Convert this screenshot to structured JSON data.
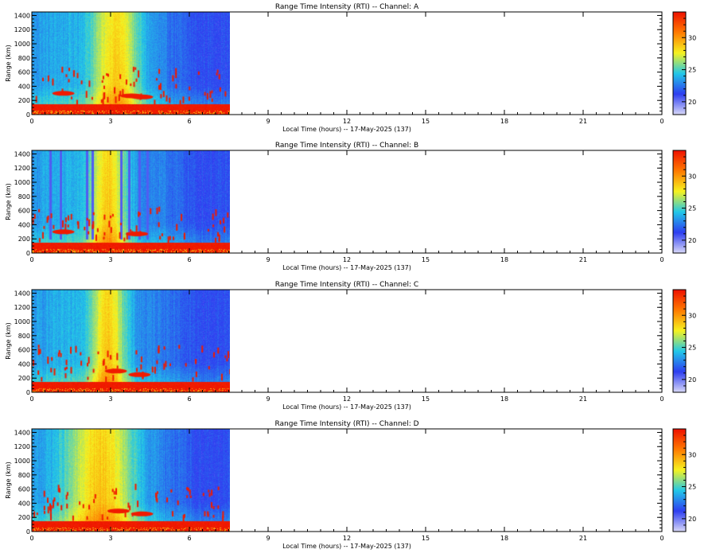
{
  "figure": {
    "colorbar_ticks": [
      "20",
      "25",
      "30"
    ],
    "colorbar_colors": [
      "#d8d8f8",
      "#2e3ef0",
      "#22c8e8",
      "#f6f220",
      "#ff7a00",
      "#ee1000"
    ]
  },
  "chart_data": [
    {
      "type": "heatmap",
      "title": "Range Time Intensity (RTI) -- Channel: A",
      "xlabel": "Local Time (hours) -- 17-May-2025 (137)",
      "ylabel": "Range (km)",
      "xlim": [
        0,
        24
      ],
      "ylim": [
        0,
        1450
      ],
      "xticks": [
        "0",
        "3",
        "6",
        "9",
        "12",
        "15",
        "18",
        "21",
        "0"
      ],
      "yticks": [
        "0",
        "200",
        "400",
        "600",
        "800",
        "1000",
        "1200",
        "1400"
      ],
      "data_end_hour": 7.55,
      "colorbar": {
        "range": [
          18,
          34
        ],
        "ticks": [
          20,
          25,
          30
        ]
      },
      "features": {
        "warm_band_center_hour": 3.2,
        "warm_band_halfwidth_hours": 0.9,
        "ground_clutter_top_km": 150,
        "echo_blobs": [
          {
            "hour": 1.2,
            "km": 300
          },
          {
            "hour": 3.8,
            "km": 265
          },
          {
            "hour": 4.2,
            "km": 250
          }
        ]
      }
    },
    {
      "type": "heatmap",
      "title": "Range Time Intensity (RTI) -- Channel: B",
      "xlabel": "Local Time (hours) -- 17-May-2025 (137)",
      "ylabel": "Range (km)",
      "xlim": [
        0,
        24
      ],
      "ylim": [
        0,
        1450
      ],
      "xticks": [
        "0",
        "3",
        "6",
        "9",
        "12",
        "15",
        "18",
        "21",
        "0"
      ],
      "yticks": [
        "0",
        "200",
        "400",
        "600",
        "800",
        "1000",
        "1200",
        "1400"
      ],
      "data_end_hour": 7.55,
      "colorbar": {
        "range": [
          18,
          34
        ],
        "ticks": [
          20,
          25,
          30
        ]
      },
      "features": {
        "warm_band_center_hour": 2.9,
        "warm_band_halfwidth_hours": 0.7,
        "ground_clutter_top_km": 150,
        "vertical_streak_hours": [
          0.7,
          1.1,
          2.1,
          2.3,
          3.4,
          3.7,
          4.1,
          4.4
        ],
        "echo_blobs": [
          {
            "hour": 1.2,
            "km": 300
          },
          {
            "hour": 4.0,
            "km": 270
          }
        ]
      }
    },
    {
      "type": "heatmap",
      "title": "Range Time Intensity (RTI) -- Channel: C",
      "xlabel": "Local Time (hours) -- 17-May-2025 (137)",
      "ylabel": "Range (km)",
      "xlim": [
        0,
        24
      ],
      "ylim": [
        0,
        1450
      ],
      "xticks": [
        "0",
        "3",
        "6",
        "9",
        "12",
        "15",
        "18",
        "21",
        "0"
      ],
      "yticks": [
        "0",
        "200",
        "400",
        "600",
        "800",
        "1000",
        "1200",
        "1400"
      ],
      "data_end_hour": 7.55,
      "colorbar": {
        "range": [
          18,
          34
        ],
        "ticks": [
          20,
          25,
          30
        ]
      },
      "features": {
        "warm_band_center_hour": 2.9,
        "warm_band_halfwidth_hours": 0.7,
        "ground_clutter_top_km": 150,
        "echo_blobs": [
          {
            "hour": 3.2,
            "km": 300
          },
          {
            "hour": 4.1,
            "km": 250
          }
        ]
      }
    },
    {
      "type": "heatmap",
      "title": "Range Time Intensity (RTI) -- Channel: D",
      "xlabel": "Local Time (hours) -- 17-May-2025 (137)",
      "ylabel": "Range (km)",
      "xlim": [
        0,
        24
      ],
      "ylim": [
        0,
        1450
      ],
      "xticks": [
        "0",
        "3",
        "6",
        "9",
        "12",
        "15",
        "18",
        "21",
        "0"
      ],
      "yticks": [
        "0",
        "200",
        "400",
        "600",
        "800",
        "1000",
        "1200",
        "1400"
      ],
      "data_end_hour": 7.55,
      "colorbar": {
        "range": [
          18,
          34
        ],
        "ticks": [
          20,
          25,
          30
        ]
      },
      "features": {
        "warm_band_center_hour": 2.7,
        "warm_band_halfwidth_hours": 1.2,
        "ground_clutter_top_km": 150,
        "echo_blobs": [
          {
            "hour": 3.3,
            "km": 290
          },
          {
            "hour": 4.2,
            "km": 250
          }
        ]
      }
    }
  ]
}
